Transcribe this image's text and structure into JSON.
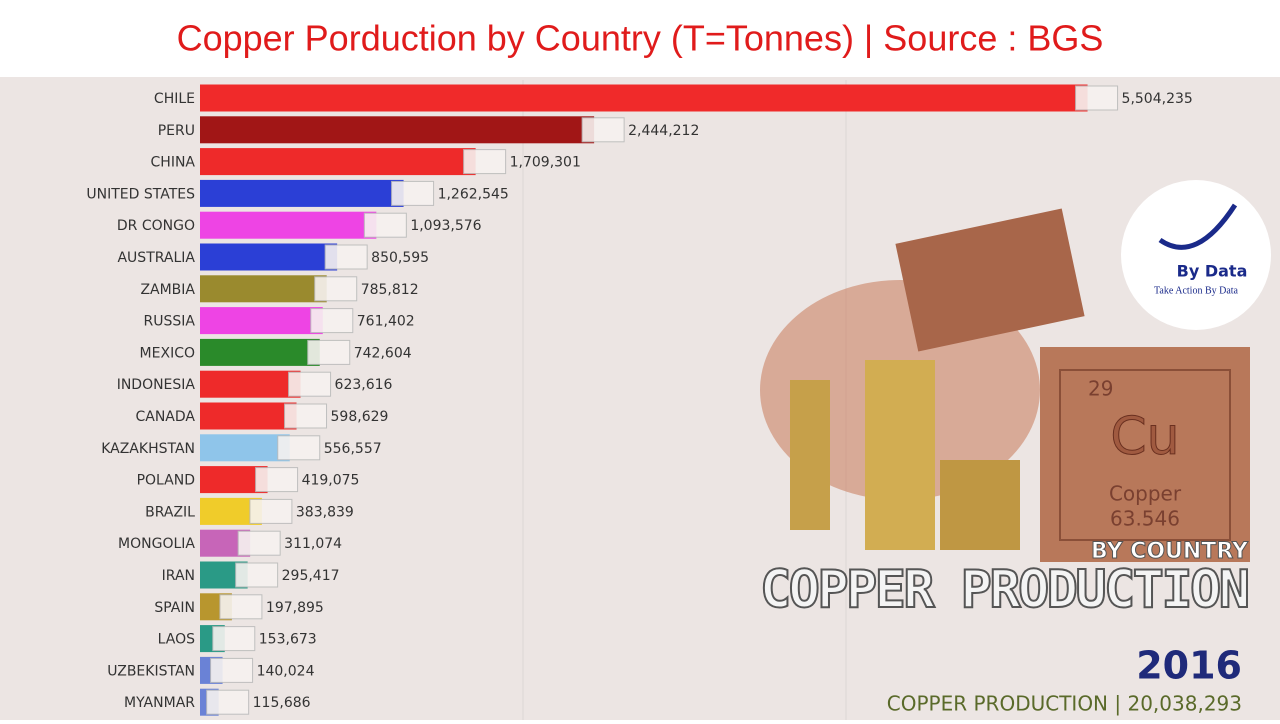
{
  "chart_data": {
    "type": "bar",
    "orientation": "horizontal",
    "title": "Copper Porduction by Country (T=Tonnes) | Source : BGS",
    "categories": [
      "CHILE",
      "PERU",
      "CHINA",
      "UNITED STATES",
      "DR CONGO",
      "AUSTRALIA",
      "ZAMBIA",
      "RUSSIA",
      "MEXICO",
      "INDONESIA",
      "CANADA",
      "KAZAKHSTAN",
      "POLAND",
      "BRAZIL",
      "MONGOLIA",
      "IRAN",
      "SPAIN",
      "LAOS",
      "UZBEKISTAN",
      "MYANMAR"
    ],
    "values": [
      5504235,
      2444212,
      1709301,
      1262545,
      1093576,
      850595,
      785812,
      761402,
      742604,
      623616,
      598629,
      556557,
      419075,
      383839,
      311074,
      295417,
      197895,
      153673,
      140024,
      115686
    ],
    "value_labels": [
      "5,504,235",
      "2,444,212",
      "1,709,301",
      "1,262,545",
      "1,093,576",
      "850,595",
      "785,812",
      "761,402",
      "742,604",
      "623,616",
      "598,629",
      "556,557",
      "419,075",
      "383,839",
      "311,074",
      "295,417",
      "197,895",
      "153,673",
      "140,024",
      "115,686"
    ],
    "colors": [
      "#f02a2a",
      "#a11616",
      "#ee2a2a",
      "#2b3fd6",
      "#ee44e4",
      "#2b3fd6",
      "#9a8a2e",
      "#ee44e4",
      "#2a8a2a",
      "#ee2a2a",
      "#ee2a2a",
      "#8fc5ea",
      "#ee2a2a",
      "#f0cc2a",
      "#c765b8",
      "#2a9a86",
      "#b8962e",
      "#2a9a86",
      "#6a82d6",
      "#6a82d6"
    ],
    "xlim": [
      0,
      5600000
    ],
    "year": "2016",
    "total_label": "COPPER PRODUCTION | 20,038,293",
    "banner": {
      "title": "COPPER PRODUCTION",
      "subtitle": "BY COUNTRY",
      "symbol": "Cu",
      "element": "Copper",
      "mass": "63.546",
      "number": "29"
    },
    "logo": {
      "name": "By Data",
      "tagline": "Take Action By Data"
    }
  }
}
